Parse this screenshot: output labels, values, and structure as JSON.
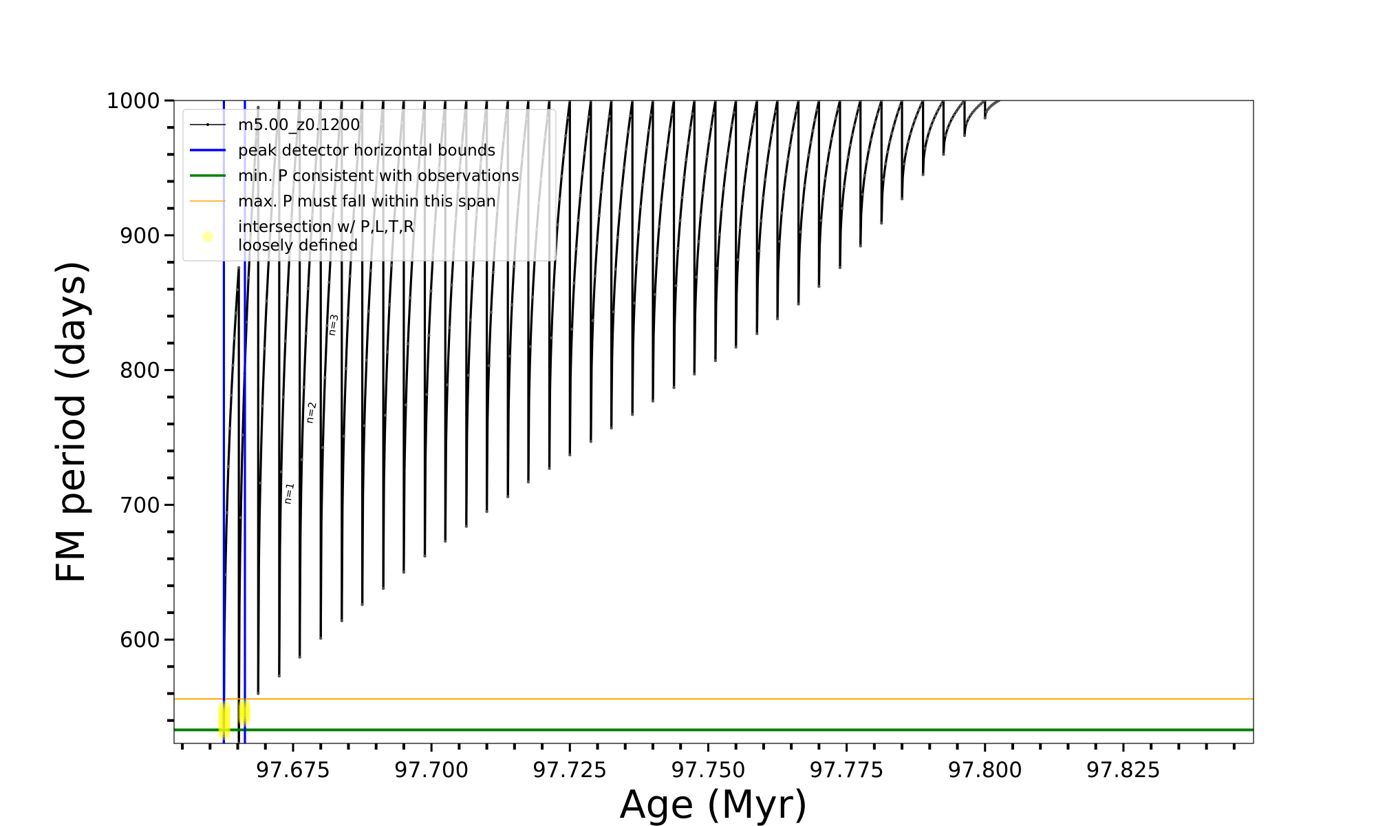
{
  "chart_data": {
    "type": "line",
    "xlabel": "Age (Myr)",
    "ylabel": "FM period (days)",
    "xlim": [
      97.6535,
      97.8485
    ],
    "ylim": [
      523,
      1000
    ],
    "x_ticks": [
      {
        "value": 97.675,
        "label": "97.675"
      },
      {
        "value": 97.7,
        "label": "97.700"
      },
      {
        "value": 97.725,
        "label": "97.725"
      },
      {
        "value": 97.75,
        "label": "97.750"
      },
      {
        "value": 97.775,
        "label": "97.775"
      },
      {
        "value": 97.8,
        "label": "97.800"
      },
      {
        "value": 97.825,
        "label": "97.825"
      }
    ],
    "y_ticks": [
      {
        "value": 600,
        "label": "600"
      },
      {
        "value": 700,
        "label": "700"
      },
      {
        "value": 800,
        "label": "800"
      },
      {
        "value": 900,
        "label": "900"
      },
      {
        "value": 1000,
        "label": "1000"
      }
    ],
    "series": [
      {
        "name": "m5.00_z0.1200",
        "color": "#000000",
        "pulses": [
          {
            "start": 97.6625,
            "end": 97.6652,
            "min": 523,
            "peak": 876
          },
          {
            "start": 97.6652,
            "end": 97.6687,
            "min": 523,
            "peak": 995
          },
          {
            "start": 97.6687,
            "end": 97.6725,
            "min": 560,
            "peak": 1000
          },
          {
            "start": 97.6725,
            "end": 97.6762,
            "min": 573,
            "peak": 1000
          },
          {
            "start": 97.6762,
            "end": 97.68,
            "min": 587,
            "peak": 1000
          },
          {
            "start": 97.68,
            "end": 97.6838,
            "min": 601,
            "peak": 1000
          },
          {
            "start": 97.6838,
            "end": 97.6875,
            "min": 614,
            "peak": 1000
          },
          {
            "start": 97.6875,
            "end": 97.6913,
            "min": 626,
            "peak": 1000
          },
          {
            "start": 97.6913,
            "end": 97.695,
            "min": 638,
            "peak": 1000
          },
          {
            "start": 97.695,
            "end": 97.6988,
            "min": 650,
            "peak": 1000
          },
          {
            "start": 97.6988,
            "end": 97.7025,
            "min": 662,
            "peak": 1000
          },
          {
            "start": 97.7025,
            "end": 97.7063,
            "min": 673,
            "peak": 1000
          },
          {
            "start": 97.7063,
            "end": 97.71,
            "min": 684,
            "peak": 1000
          },
          {
            "start": 97.71,
            "end": 97.7138,
            "min": 695,
            "peak": 1000
          },
          {
            "start": 97.7138,
            "end": 97.7175,
            "min": 706,
            "peak": 1000
          },
          {
            "start": 97.7175,
            "end": 97.7213,
            "min": 717,
            "peak": 1000
          },
          {
            "start": 97.7213,
            "end": 97.725,
            "min": 727,
            "peak": 1000
          },
          {
            "start": 97.725,
            "end": 97.7288,
            "min": 737,
            "peak": 1000
          },
          {
            "start": 97.7288,
            "end": 97.7325,
            "min": 747,
            "peak": 1000
          },
          {
            "start": 97.7325,
            "end": 97.7363,
            "min": 757,
            "peak": 1000
          },
          {
            "start": 97.7363,
            "end": 97.74,
            "min": 767,
            "peak": 1000
          },
          {
            "start": 97.74,
            "end": 97.7438,
            "min": 777,
            "peak": 1000
          },
          {
            "start": 97.7438,
            "end": 97.7475,
            "min": 787,
            "peak": 1000
          },
          {
            "start": 97.7475,
            "end": 97.7513,
            "min": 797,
            "peak": 1000
          },
          {
            "start": 97.7513,
            "end": 97.755,
            "min": 807,
            "peak": 1000
          },
          {
            "start": 97.755,
            "end": 97.7588,
            "min": 817,
            "peak": 1000
          },
          {
            "start": 97.7588,
            "end": 97.7625,
            "min": 827,
            "peak": 1000
          },
          {
            "start": 97.7625,
            "end": 97.7663,
            "min": 838,
            "peak": 1000
          },
          {
            "start": 97.7663,
            "end": 97.77,
            "min": 849,
            "peak": 1000
          },
          {
            "start": 97.77,
            "end": 97.7738,
            "min": 862,
            "peak": 1000
          },
          {
            "start": 97.7738,
            "end": 97.7775,
            "min": 876,
            "peak": 1000
          },
          {
            "start": 97.7775,
            "end": 97.7813,
            "min": 892,
            "peak": 1000
          },
          {
            "start": 97.7813,
            "end": 97.785,
            "min": 909,
            "peak": 1000
          },
          {
            "start": 97.785,
            "end": 97.7888,
            "min": 927,
            "peak": 1000
          },
          {
            "start": 97.7888,
            "end": 97.7925,
            "min": 945,
            "peak": 1000
          },
          {
            "start": 97.7925,
            "end": 97.7963,
            "min": 960,
            "peak": 1000
          },
          {
            "start": 97.7963,
            "end": 97.8,
            "min": 974,
            "peak": 1000
          },
          {
            "start": 97.8,
            "end": 97.8025,
            "min": 987,
            "peak": 1000
          }
        ]
      },
      {
        "name": "peak detector horizontal bounds",
        "color": "#0000ff",
        "kind": "vline",
        "x": [
          97.6625,
          97.6663
        ]
      },
      {
        "name": "min. P consistent with observations",
        "color": "#008000",
        "kind": "hline",
        "y": 533
      },
      {
        "name": "max. P must fall within this span",
        "color": "#ffa500",
        "kind": "hline",
        "y": 556
      },
      {
        "name": "intersection w/ P,L,T,R\nloosely defined",
        "color": "#ffff00",
        "kind": "marker_clusters",
        "points": [
          {
            "x": 97.6626,
            "y": [
              530,
              550
            ]
          },
          {
            "x": 97.6662,
            "y": [
              540,
              552
            ]
          }
        ]
      }
    ],
    "annotations": [
      {
        "text": "n=1",
        "x": 97.6745,
        "y": 700
      },
      {
        "text": "n=2",
        "x": 97.6785,
        "y": 760
      },
      {
        "text": "n=3",
        "x": 97.6825,
        "y": 825
      }
    ],
    "legend": {
      "location": "upper-left",
      "entries": [
        "m5.00_z0.1200",
        "peak detector horizontal bounds",
        "min. P consistent with observations",
        "max. P must fall within this span",
        "intersection w/ P,L,T,R",
        "loosely defined"
      ]
    },
    "grid": false
  }
}
